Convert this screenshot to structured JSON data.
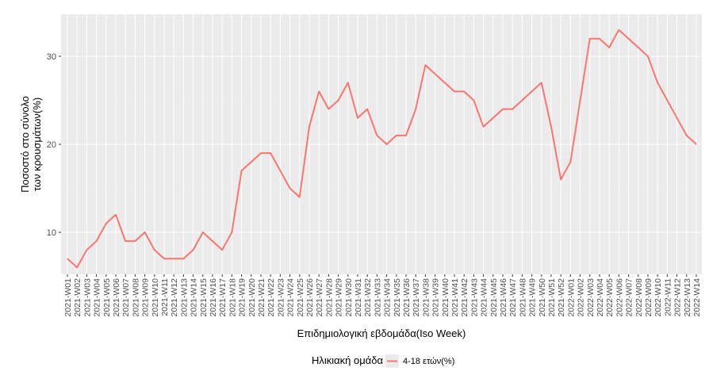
{
  "chart_data": {
    "type": "line",
    "title": "",
    "xlabel": "Επιδημιολογική εβδομάδα(Iso Week)",
    "ylabel_lines": [
      "Ποσοστό στο σύνολο",
      "των κρουσμάτων(%)"
    ],
    "ylim": [
      5,
      34
    ],
    "yticks": [
      10,
      20,
      30
    ],
    "grid": true,
    "legend": {
      "title": "Ηλικιακή ομάδα",
      "position": "bottom",
      "entries": [
        "4-18 ετών(%)"
      ]
    },
    "categories": [
      "2021-W01",
      "2021-W02",
      "2021-W03",
      "2021-W04",
      "2021-W05",
      "2021-W06",
      "2021-W07",
      "2021-W08",
      "2021-W09",
      "2021-W10",
      "2021-W11",
      "2021-W12",
      "2021-W13",
      "2021-W14",
      "2021-W15",
      "2021-W16",
      "2021-W17",
      "2021-W18",
      "2021-W19",
      "2021-W20",
      "2021-W21",
      "2021-W22",
      "2021-W23",
      "2021-W24",
      "2021-W25",
      "2021-W26",
      "2021-W27",
      "2021-W28",
      "2021-W29",
      "2021-W30",
      "2021-W31",
      "2021-W32",
      "2021-W33",
      "2021-W34",
      "2021-W35",
      "2021-W36",
      "2021-W37",
      "2021-W38",
      "2021-W39",
      "2021-W40",
      "2021-W41",
      "2021-W42",
      "2021-W43",
      "2021-W44",
      "2021-W45",
      "2021-W46",
      "2021-W47",
      "2021-W48",
      "2021-W49",
      "2021-W50",
      "2021-W51",
      "2021-W52",
      "2022-W01",
      "2022-W02",
      "2022-W03",
      "2022-W04",
      "2022-W05",
      "2022-W06",
      "2022-W07",
      "2022-W08",
      "2022-W09",
      "2022-W10",
      "2022-W11",
      "2022-W12",
      "2022-W13",
      "2022-W14"
    ],
    "series": [
      {
        "name": "4-18 ετών(%)",
        "color": "#F8766D",
        "values": [
          7,
          6,
          8,
          9,
          11,
          12,
          9,
          9,
          10,
          8,
          7,
          7,
          7,
          8,
          10,
          9,
          8,
          10,
          17,
          18,
          19,
          19,
          17,
          15,
          14,
          22,
          26,
          24,
          25,
          27,
          23,
          24,
          21,
          20,
          21,
          21,
          24,
          29,
          28,
          27,
          26,
          26,
          25,
          22,
          23,
          24,
          24,
          25,
          26,
          27,
          22,
          16,
          18,
          25,
          32,
          32,
          31,
          33,
          32,
          31,
          30,
          27,
          25,
          23,
          21,
          20
        ]
      }
    ]
  },
  "colors": {
    "panel_bg": "#EBEBEB",
    "grid_major": "#FFFFFF",
    "grid_minor": "#F2F2F2",
    "axis_text": "#4D4D4D",
    "axis_title": "#000000"
  }
}
